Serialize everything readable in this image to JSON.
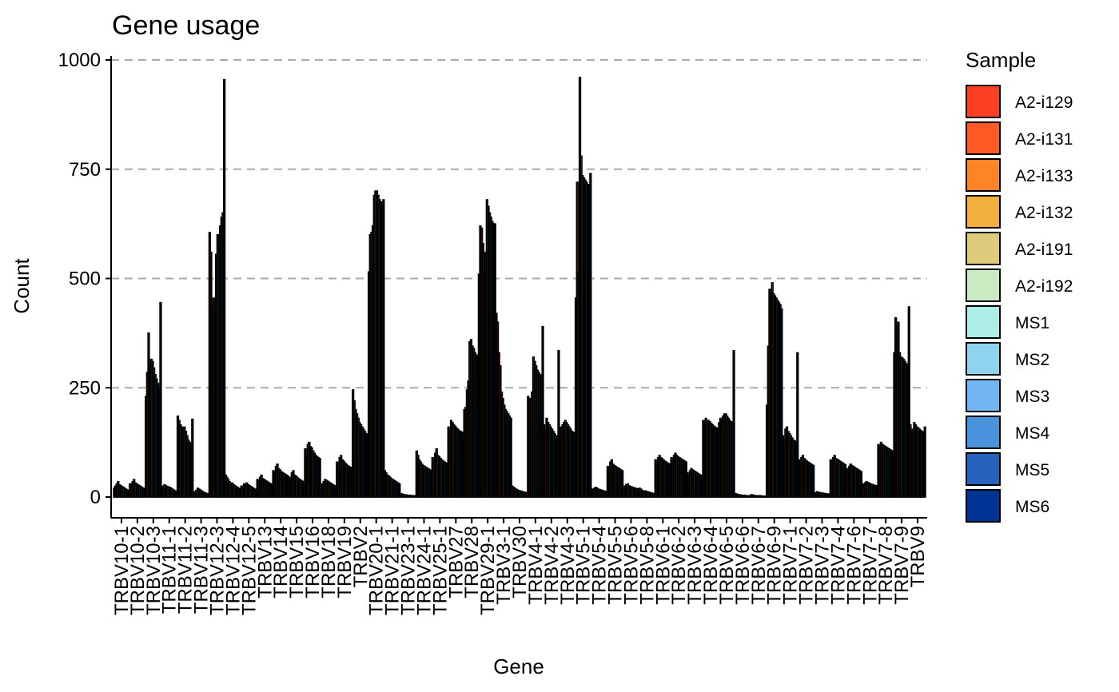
{
  "chart_data": {
    "type": "bar",
    "title": "Gene usage",
    "xlabel": "Gene",
    "ylabel": "Count",
    "ylim": [
      0,
      1000
    ],
    "yticks": [
      0,
      250,
      500,
      750,
      1000
    ],
    "grid": {
      "major_y": true,
      "style": "dashed"
    },
    "legend": {
      "title": "Sample",
      "position": "right"
    },
    "categories": [
      "TRBV10-1",
      "TRBV10-2",
      "TRBV10-3",
      "TRBV11-1",
      "TRBV11-2",
      "TRBV11-3",
      "TRBV12-3",
      "TRBV12-4",
      "TRBV12-5",
      "TRBV13",
      "TRBV14",
      "TRBV15",
      "TRBV16",
      "TRBV18",
      "TRBV19",
      "TRBV2",
      "TRBV20-1",
      "TRBV21-1",
      "TRBV23-1",
      "TRBV24-1",
      "TRBV25-1",
      "TRBV27",
      "TRBV28",
      "TRBV29-1",
      "TRBV3-1",
      "TRBV30",
      "TRBV4-1",
      "TRBV4-2",
      "TRBV4-3",
      "TRBV5-1",
      "TRBV5-4",
      "TRBV5-5",
      "TRBV5-6",
      "TRBV5-8",
      "TRBV6-1",
      "TRBV6-2",
      "TRBV6-3",
      "TRBV6-4",
      "TRBV6-5",
      "TRBV6-6",
      "TRBV6-7",
      "TRBV6-9",
      "TRBV7-1",
      "TRBV7-2",
      "TRBV7-3",
      "TRBV7-4",
      "TRBV7-6",
      "TRBV7-7",
      "TRBV7-8",
      "TRBV7-9",
      "TRBV9"
    ],
    "series": [
      {
        "name": "A2-i129",
        "color": "#FF3F24",
        "values": [
          20,
          30,
          230,
          25,
          185,
          10,
          605,
          50,
          25,
          40,
          60,
          45,
          110,
          30,
          80,
          245,
          515,
          60,
          8,
          105,
          90,
          160,
          200,
          620,
          420,
          25,
          230,
          165,
          155,
          455,
          15,
          70,
          25,
          20,
          85,
          90,
          55,
          175,
          170,
          8,
          5,
          210,
          140,
          85,
          10,
          85,
          65,
          30,
          120,
          330,
          165
        ]
      },
      {
        "name": "A2-i131",
        "color": "#FF5A26",
        "values": [
          25,
          28,
          285,
          22,
          175,
          12,
          560,
          45,
          22,
          35,
          55,
          40,
          95,
          28,
          70,
          220,
          600,
          55,
          7,
          95,
          80,
          150,
          205,
          615,
          400,
          22,
          225,
          150,
          160,
          720,
          18,
          65,
          22,
          18,
          80,
          85,
          50,
          170,
          180,
          7,
          5,
          345,
          130,
          80,
          8,
          80,
          60,
          28,
          115,
          410,
          150
        ]
      },
      {
        "name": "A2-i133",
        "color": "#FF8427",
        "values": [
          30,
          35,
          375,
          28,
          165,
          15,
          440,
          40,
          30,
          45,
          70,
          55,
          120,
          35,
          90,
          200,
          605,
          50,
          6,
          85,
          100,
          175,
          245,
          580,
          330,
          20,
          225,
          180,
          165,
          510,
          20,
          80,
          28,
          15,
          90,
          95,
          60,
          180,
          175,
          6,
          4,
          475,
          155,
          90,
          12,
          90,
          70,
          32,
          125,
          390,
          155
        ]
      },
      {
        "name": "A2-i132",
        "color": "#F3AF3C",
        "values": [
          35,
          40,
          305,
          26,
          160,
          20,
          455,
          35,
          28,
          50,
          75,
          60,
          125,
          40,
          95,
          190,
          620,
          48,
          5,
          80,
          110,
          170,
          265,
          560,
          300,
          18,
          240,
          170,
          170,
          960,
          22,
          85,
          30,
          12,
          95,
          100,
          65,
          170,
          185,
          5,
          3,
          465,
          160,
          95,
          10,
          95,
          75,
          35,
          120,
          400,
          170
        ]
      },
      {
        "name": "A2-i191",
        "color": "#DECB7C",
        "values": [
          28,
          32,
          315,
          24,
          155,
          18,
          430,
          30,
          32,
          42,
          65,
          50,
          115,
          38,
          85,
          180,
          690,
          45,
          5,
          75,
          95,
          165,
          355,
          555,
          240,
          16,
          320,
          165,
          175,
          780,
          20,
          75,
          26,
          14,
          90,
          95,
          62,
          175,
          190,
          5,
          3,
          490,
          150,
          88,
          10,
          88,
          72,
          33,
          118,
          330,
          165
        ]
      },
      {
        "name": "A2-i192",
        "color": "#C9EBC2",
        "values": [
          26,
          30,
          310,
          23,
          160,
          16,
          555,
          32,
          28,
          40,
          62,
          48,
          112,
          36,
          82,
          170,
          700,
          42,
          4,
          72,
          92,
          162,
          360,
          680,
          225,
          15,
          310,
          160,
          170,
          735,
          18,
          72,
          24,
          13,
          88,
          92,
          60,
          172,
          190,
          4,
          3,
          465,
          145,
          85,
          9,
          86,
          70,
          32,
          116,
          320,
          160
        ]
      },
      {
        "name": "MS1",
        "color": "#AEEEE8",
        "values": [
          24,
          28,
          295,
          22,
          150,
          14,
          600,
          28,
          26,
          38,
          58,
          45,
          105,
          34,
          78,
          165,
          700,
          40,
          4,
          70,
          88,
          158,
          345,
          665,
          210,
          14,
          300,
          155,
          165,
          730,
          17,
          70,
          23,
          12,
          85,
          90,
          58,
          168,
          185,
          4,
          3,
          460,
          140,
          82,
          9,
          84,
          68,
          30,
          114,
          318,
          158
        ]
      },
      {
        "name": "MS2",
        "color": "#8FD3EF",
        "values": [
          22,
          26,
          280,
          20,
          140,
          12,
          600,
          26,
          24,
          36,
          56,
          42,
          100,
          32,
          75,
          160,
          690,
          38,
          4,
          68,
          85,
          155,
          340,
          650,
          200,
          13,
          290,
          150,
          160,
          725,
          16,
          68,
          22,
          11,
          82,
          88,
          56,
          165,
          180,
          4,
          3,
          455,
          135,
          80,
          8,
          82,
          66,
          29,
          112,
          315,
          155
        ]
      },
      {
        "name": "MS3",
        "color": "#71B7F6",
        "values": [
          20,
          24,
          270,
          18,
          130,
          10,
          620,
          24,
          22,
          34,
          54,
          40,
          95,
          30,
          72,
          155,
          680,
          36,
          3,
          66,
          82,
          152,
          330,
          640,
          195,
          12,
          285,
          145,
          155,
          720,
          15,
          66,
          21,
          10,
          80,
          86,
          54,
          162,
          175,
          3,
          2,
          450,
          130,
          78,
          8,
          80,
          64,
          28,
          110,
          310,
          152
        ]
      },
      {
        "name": "MS4",
        "color": "#4B92DD",
        "values": [
          18,
          22,
          260,
          16,
          125,
          9,
          640,
          22,
          20,
          32,
          52,
          38,
          92,
          28,
          70,
          150,
          675,
          34,
          3,
          64,
          80,
          150,
          325,
          630,
          190,
          11,
          280,
          140,
          150,
          715,
          14,
          64,
          20,
          9,
          78,
          84,
          52,
          160,
          172,
          3,
          2,
          445,
          128,
          76,
          7,
          78,
          62,
          27,
          108,
          305,
          150
        ]
      },
      {
        "name": "MS5",
        "color": "#2563BE",
        "values": [
          16,
          20,
          250,
          14,
          120,
          8,
          650,
          20,
          18,
          30,
          50,
          36,
          90,
          26,
          68,
          145,
          670,
          32,
          3,
          62,
          78,
          148,
          320,
          625,
          185,
          10,
          275,
          138,
          148,
          710,
          13,
          62,
          19,
          8,
          76,
          82,
          50,
          158,
          170,
          3,
          2,
          440,
          125,
          74,
          7,
          76,
          60,
          26,
          106,
          300,
          148
        ]
      },
      {
        "name": "MS6",
        "color": "#003393",
        "values": [
          15,
          18,
          445,
          13,
          178,
          7,
          955,
          18,
          16,
          28,
          48,
          34,
          88,
          24,
          66,
          140,
          680,
          30,
          2,
          60,
          76,
          145,
          510,
          625,
          180,
          10,
          390,
          335,
          145,
          740,
          12,
          60,
          18,
          8,
          74,
          80,
          48,
          155,
          335,
          2,
          2,
          430,
          330,
          72,
          6,
          74,
          58,
          25,
          104,
          435,
          160
        ]
      }
    ]
  }
}
